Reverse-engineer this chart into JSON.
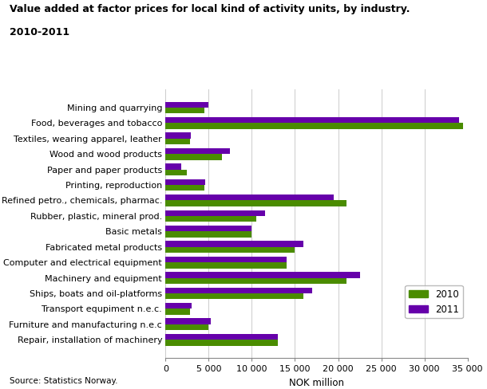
{
  "title_line1": "Value added at factor prices for local kind of activity units, by industry.",
  "title_line2": "2010-2011",
  "categories": [
    "Mining and quarrying",
    "Food, beverages and tobacco",
    "Textiles, wearing apparel, leather",
    "Wood and wood products",
    "Paper and paper products",
    "Printing, reproduction",
    "Refined petro., chemicals, pharmac.",
    "Rubber, plastic, mineral prod.",
    "Basic metals",
    "Fabricated metal products",
    "Computer and electrical equipment",
    "Machinery and equipment",
    "Ships, boats and oil-platforms",
    "Transport equpiment n.e.c.",
    "Furniture and manufacturing n.e.c",
    "Repair, installation of machinery"
  ],
  "values_2010": [
    4500,
    34500,
    2800,
    6500,
    2500,
    4500,
    21000,
    10500,
    10000,
    15000,
    14000,
    21000,
    16000,
    2800,
    5000,
    13000
  ],
  "values_2011": [
    5000,
    34000,
    2900,
    7500,
    1800,
    4600,
    19500,
    11500,
    10000,
    16000,
    14000,
    22500,
    17000,
    3000,
    5200,
    13000
  ],
  "color_2010": "#4a8c00",
  "color_2011": "#6600aa",
  "xlabel": "NOK million",
  "xlim": [
    0,
    35000
  ],
  "xticks": [
    0,
    5000,
    10000,
    15000,
    20000,
    25000,
    30000,
    35000
  ],
  "xticklabels": [
    "0",
    "5 000",
    "10 000",
    "15 000",
    "20 000",
    "25 000",
    "30 000",
    "35 000"
  ],
  "source": "Source: Statistics Norway.",
  "legend_2010": "2010",
  "legend_2011": "2011",
  "bg_color": "#ffffff",
  "grid_color": "#cccccc"
}
